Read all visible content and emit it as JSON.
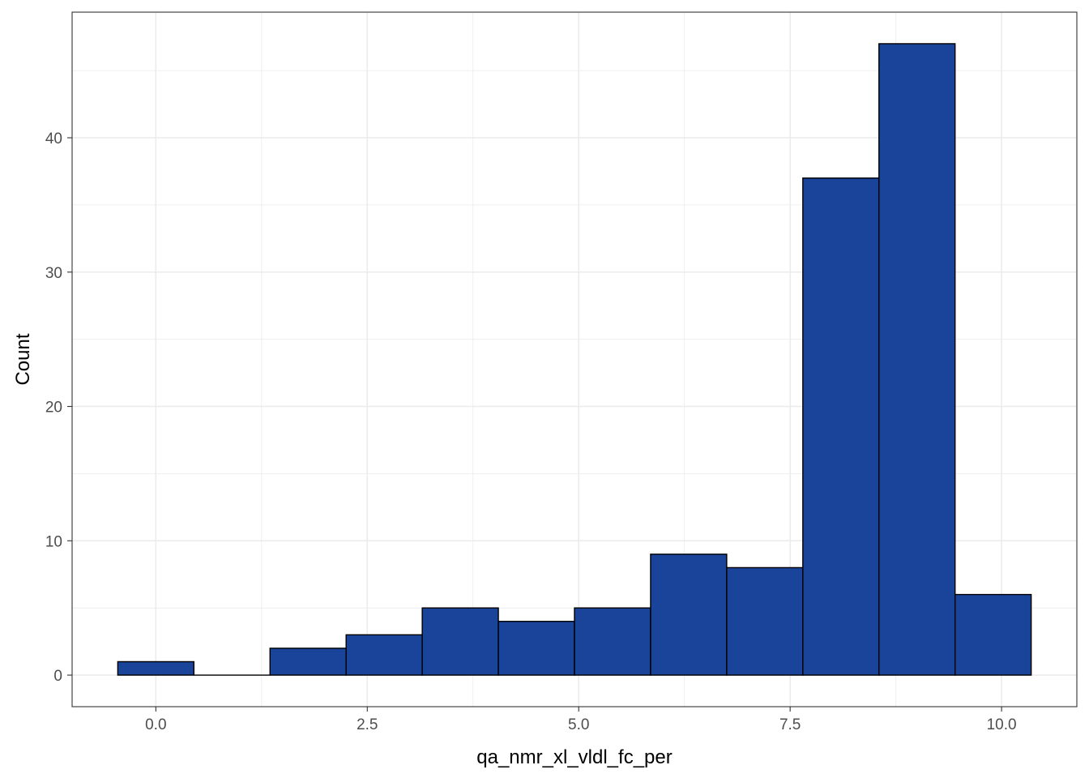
{
  "chart_data": {
    "type": "bar",
    "subtype": "histogram",
    "title": "",
    "xlabel": "qa_nmr_xl_vldl_fc_per",
    "ylabel": "Count",
    "bin_width": 0.9,
    "bins": [
      {
        "x0": -0.45,
        "x1": 0.45,
        "count": 1
      },
      {
        "x0": 0.45,
        "x1": 1.35,
        "count": 0
      },
      {
        "x0": 1.35,
        "x1": 2.25,
        "count": 2
      },
      {
        "x0": 2.25,
        "x1": 3.15,
        "count": 3
      },
      {
        "x0": 3.15,
        "x1": 4.05,
        "count": 5
      },
      {
        "x0": 4.05,
        "x1": 4.95,
        "count": 4
      },
      {
        "x0": 4.95,
        "x1": 5.85,
        "count": 5
      },
      {
        "x0": 5.85,
        "x1": 6.75,
        "count": 9
      },
      {
        "x0": 6.75,
        "x1": 7.65,
        "count": 8
      },
      {
        "x0": 7.65,
        "x1": 8.55,
        "count": 37
      },
      {
        "x0": 8.55,
        "x1": 9.45,
        "count": 47
      },
      {
        "x0": 9.45,
        "x1": 10.35,
        "count": 6
      }
    ],
    "xlim": [
      -0.99,
      10.89
    ],
    "ylim": [
      -2.35,
      49.35
    ],
    "x_ticks": [
      {
        "value": 0.0,
        "label": "0.0"
      },
      {
        "value": 2.5,
        "label": "2.5"
      },
      {
        "value": 5.0,
        "label": "5.0"
      },
      {
        "value": 7.5,
        "label": "7.5"
      },
      {
        "value": 10.0,
        "label": "10.0"
      }
    ],
    "y_ticks": [
      {
        "value": 0,
        "label": "0"
      },
      {
        "value": 10,
        "label": "10"
      },
      {
        "value": 20,
        "label": "20"
      },
      {
        "value": 30,
        "label": "30"
      },
      {
        "value": 40,
        "label": "40"
      }
    ],
    "grid": true,
    "theme": "bw",
    "fill_color": "#1a4499",
    "edge_color": "#000000",
    "grid_color": "#ebebeb",
    "legend": "none"
  }
}
